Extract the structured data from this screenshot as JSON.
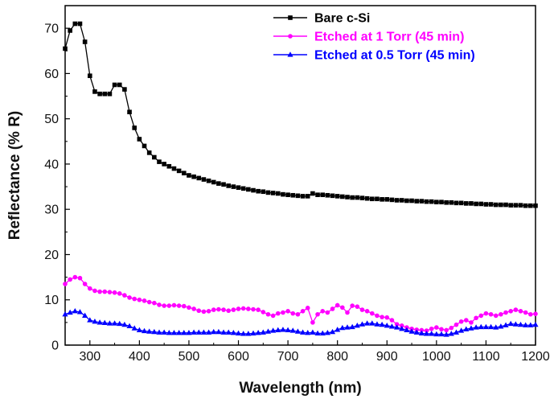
{
  "chart_data": {
    "type": "line",
    "xlabel": "Wavelength (nm)",
    "ylabel": "Reflectance (% R)",
    "xlim": [
      250,
      1200
    ],
    "ylim": [
      0,
      75
    ],
    "xticks": [
      300,
      400,
      500,
      600,
      700,
      800,
      900,
      1000,
      1100,
      1200
    ],
    "yticks": [
      0,
      10,
      20,
      30,
      40,
      50,
      60,
      70
    ],
    "grid": false,
    "legend": "top-right",
    "series": [
      {
        "name": "Bare c-Si",
        "color": "#000000",
        "marker": "square",
        "x": [
          250,
          260,
          270,
          280,
          290,
          300,
          310,
          320,
          330,
          340,
          350,
          360,
          370,
          380,
          390,
          400,
          410,
          420,
          430,
          440,
          450,
          460,
          470,
          480,
          490,
          500,
          510,
          520,
          530,
          540,
          550,
          560,
          570,
          580,
          590,
          600,
          610,
          620,
          630,
          640,
          650,
          660,
          670,
          680,
          690,
          700,
          710,
          720,
          730,
          740,
          750,
          760,
          770,
          780,
          790,
          800,
          810,
          820,
          830,
          840,
          850,
          860,
          870,
          880,
          890,
          900,
          910,
          920,
          930,
          940,
          950,
          960,
          970,
          980,
          990,
          1000,
          1010,
          1020,
          1030,
          1040,
          1050,
          1060,
          1070,
          1080,
          1090,
          1100,
          1110,
          1120,
          1130,
          1140,
          1150,
          1160,
          1170,
          1180,
          1190,
          1200
        ],
        "y": [
          65.5,
          69.5,
          71,
          71,
          67,
          59.5,
          56,
          55.5,
          55.5,
          55.5,
          57.5,
          57.5,
          56.5,
          51.5,
          48,
          45.5,
          44,
          42.5,
          41.5,
          40.5,
          40,
          39.5,
          39,
          38.5,
          38,
          37.5,
          37.2,
          36.9,
          36.6,
          36.3,
          36,
          35.7,
          35.5,
          35.2,
          35,
          34.8,
          34.6,
          34.4,
          34.2,
          34,
          33.9,
          33.7,
          33.6,
          33.5,
          33.3,
          33.2,
          33.1,
          33,
          32.9,
          32.9,
          33.5,
          33.2,
          33.2,
          33.1,
          33,
          32.9,
          32.8,
          32.7,
          32.6,
          32.6,
          32.5,
          32.4,
          32.3,
          32.3,
          32.2,
          32.2,
          32.1,
          32,
          32,
          31.9,
          31.9,
          31.8,
          31.8,
          31.7,
          31.7,
          31.6,
          31.6,
          31.5,
          31.5,
          31.4,
          31.4,
          31.3,
          31.3,
          31.2,
          31.2,
          31.1,
          31.1,
          31,
          31,
          31,
          30.9,
          30.9,
          30.9,
          30.8,
          30.8,
          30.8
        ]
      },
      {
        "name": "Etched at 1 Torr (45 min)",
        "color": "#ff00ff",
        "marker": "circle",
        "x": [
          250,
          260,
          270,
          280,
          290,
          300,
          310,
          320,
          330,
          340,
          350,
          360,
          370,
          380,
          390,
          400,
          410,
          420,
          430,
          440,
          450,
          460,
          470,
          480,
          490,
          500,
          510,
          520,
          530,
          540,
          550,
          560,
          570,
          580,
          590,
          600,
          610,
          620,
          630,
          640,
          650,
          660,
          670,
          680,
          690,
          700,
          710,
          720,
          730,
          740,
          750,
          760,
          770,
          780,
          790,
          800,
          810,
          820,
          830,
          840,
          850,
          860,
          870,
          880,
          890,
          900,
          910,
          920,
          930,
          940,
          950,
          960,
          970,
          980,
          990,
          1000,
          1010,
          1020,
          1030,
          1040,
          1050,
          1060,
          1070,
          1080,
          1090,
          1100,
          1110,
          1120,
          1130,
          1140,
          1150,
          1160,
          1170,
          1180,
          1190,
          1200
        ],
        "y": [
          13.5,
          14.5,
          15,
          14.8,
          13.5,
          12.5,
          12,
          11.8,
          11.8,
          11.7,
          11.6,
          11.4,
          11,
          10.5,
          10.2,
          10,
          9.8,
          9.5,
          9.3,
          8.9,
          8.7,
          8.7,
          8.8,
          8.7,
          8.6,
          8.3,
          8,
          7.6,
          7.4,
          7.5,
          7.8,
          7.9,
          7.8,
          7.6,
          7.8,
          8,
          8.1,
          8,
          7.9,
          7.8,
          7.3,
          6.8,
          6.5,
          7,
          7.2,
          7.5,
          7,
          6.8,
          7.5,
          8.2,
          5,
          6.8,
          7.5,
          7.2,
          8,
          8.8,
          8.3,
          7.2,
          8.7,
          8.5,
          7.8,
          7.5,
          7,
          6.5,
          6.2,
          6.1,
          5.5,
          4.6,
          4.3,
          3.9,
          3.6,
          3.4,
          3.3,
          3.2,
          3.6,
          3.9,
          3.5,
          3.3,
          3.8,
          4.5,
          5.2,
          5.5,
          5,
          6,
          6.5,
          7,
          6.8,
          6.5,
          6.8,
          7.2,
          7.5,
          7.8,
          7.5,
          7.2,
          6.8,
          6.9
        ]
      },
      {
        "name": "Etched at 0.5 Torr (45 min)",
        "color": "#0000ff",
        "marker": "triangle",
        "x": [
          250,
          260,
          270,
          280,
          290,
          300,
          310,
          320,
          330,
          340,
          350,
          360,
          370,
          380,
          390,
          400,
          410,
          420,
          430,
          440,
          450,
          460,
          470,
          480,
          490,
          500,
          510,
          520,
          530,
          540,
          550,
          560,
          570,
          580,
          590,
          600,
          610,
          620,
          630,
          640,
          650,
          660,
          670,
          680,
          690,
          700,
          710,
          720,
          730,
          740,
          750,
          760,
          770,
          780,
          790,
          800,
          810,
          820,
          830,
          840,
          850,
          860,
          870,
          880,
          890,
          900,
          910,
          920,
          930,
          940,
          950,
          960,
          970,
          980,
          990,
          1000,
          1010,
          1020,
          1030,
          1040,
          1050,
          1060,
          1070,
          1080,
          1090,
          1100,
          1110,
          1120,
          1130,
          1140,
          1150,
          1160,
          1170,
          1180,
          1190,
          1200
        ],
        "y": [
          6.8,
          7.2,
          7.5,
          7.3,
          6.5,
          5.5,
          5.2,
          5,
          4.9,
          4.8,
          4.8,
          4.7,
          4.5,
          4.2,
          3.7,
          3.3,
          3.1,
          3,
          2.9,
          2.8,
          2.8,
          2.7,
          2.7,
          2.7,
          2.7,
          2.7,
          2.8,
          2.8,
          2.8,
          2.8,
          2.9,
          2.9,
          2.8,
          2.8,
          2.7,
          2.6,
          2.5,
          2.5,
          2.6,
          2.7,
          2.8,
          3,
          3.2,
          3.3,
          3.4,
          3.3,
          3.2,
          3,
          2.8,
          2.7,
          2.8,
          2.6,
          2.6,
          2.7,
          2.9,
          3.4,
          3.8,
          3.9,
          4,
          4.3,
          4.6,
          4.8,
          4.8,
          4.6,
          4.5,
          4.3,
          4.1,
          3.9,
          3.6,
          3.3,
          3,
          2.8,
          2.6,
          2.5,
          2.5,
          2.4,
          2.4,
          2.3,
          2.5,
          2.8,
          3.2,
          3.5,
          3.7,
          3.9,
          4,
          4,
          4,
          3.9,
          4.1,
          4.4,
          4.7,
          4.6,
          4.5,
          4.4,
          4.4,
          4.5
        ]
      }
    ]
  }
}
